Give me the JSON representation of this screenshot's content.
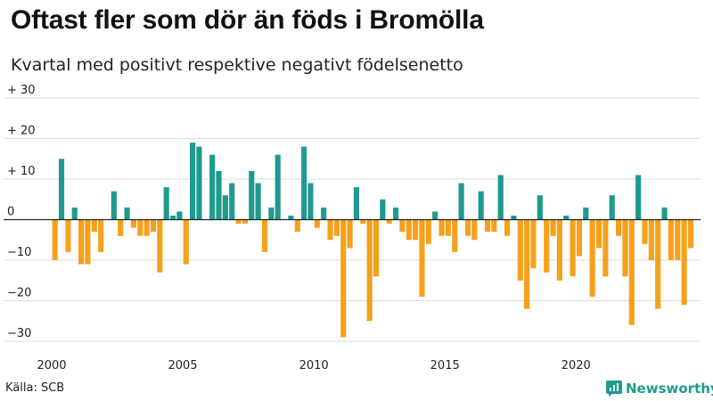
{
  "title": "Oftast fler som dör än föds i Bromölla",
  "subtitle": "Kvartal med positivt respektive negativt födelsenetto",
  "source": "Källa: SCB",
  "brand": "Newsworthy",
  "colors": {
    "positive": "#1f9a8e",
    "negative": "#f5a11c",
    "grid": "#dddddd",
    "zero": "#222222"
  },
  "chart_data": {
    "type": "bar",
    "title": "Oftast fler som dör än föds i Bromölla",
    "subtitle": "Kvartal med positivt respektive negativt födelsenetto",
    "xlabel": "",
    "ylabel": "",
    "ylim": [
      -30,
      30
    ],
    "y_ticks": [
      30,
      20,
      10,
      0,
      -10,
      -20,
      -30
    ],
    "y_tick_labels": [
      "+ 30",
      "+ 20",
      "+ 10",
      "0",
      "−10",
      "−20",
      "−30"
    ],
    "x_start": 2000,
    "x_range": [
      2000,
      2024.75
    ],
    "x_ticks": [
      2000,
      2005,
      2010,
      2015,
      2020
    ],
    "x_tick_labels": [
      "2000",
      "2005",
      "2010",
      "2015",
      "2020"
    ],
    "values": [
      -10,
      15,
      -8,
      3,
      -11,
      -11,
      -3,
      -8,
      0,
      7,
      -4,
      3,
      -2,
      -4,
      -4,
      -3,
      -13,
      8,
      1,
      2,
      -11,
      19,
      18,
      0,
      16,
      12,
      6,
      9,
      -1,
      -1,
      12,
      9,
      -8,
      3,
      16,
      0,
      1,
      -3,
      18,
      9,
      -2,
      3,
      -5,
      -4,
      -29,
      -7,
      8,
      -1,
      -25,
      -14,
      5,
      -1,
      3,
      -3,
      -5,
      -5,
      -19,
      -6,
      2,
      -4,
      -4,
      -8,
      9,
      -4,
      -5,
      7,
      -3,
      -3,
      11,
      -4,
      1,
      -15,
      -22,
      -12,
      6,
      -13,
      -4,
      -15,
      1,
      -14,
      -9,
      3,
      -19,
      -7,
      -14,
      6,
      -4,
      -14,
      -26,
      11,
      -6,
      -10,
      -22,
      3,
      -10,
      -10,
      -21,
      -7
    ]
  }
}
